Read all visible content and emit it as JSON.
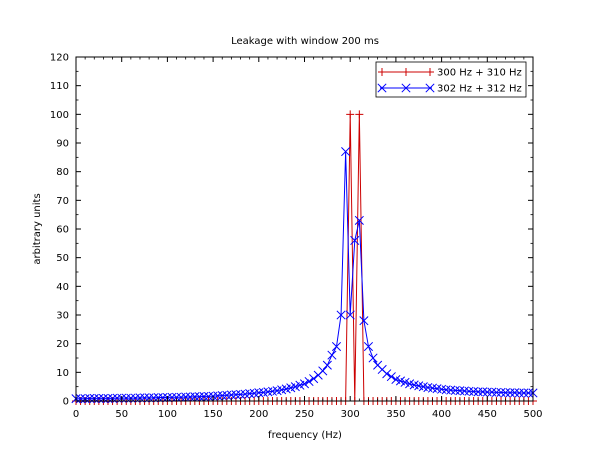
{
  "chart_data": {
    "type": "line",
    "title": "Leakage with window 200 ms",
    "xlabel": "frequency (Hz)",
    "ylabel": "arbitrary units",
    "xlim": [
      0,
      500
    ],
    "ylim": [
      0,
      120
    ],
    "xticks": [
      0,
      50,
      100,
      150,
      200,
      250,
      300,
      350,
      400,
      450,
      500
    ],
    "yticks": [
      0,
      10,
      20,
      30,
      40,
      50,
      60,
      70,
      80,
      90,
      100,
      110,
      120
    ],
    "grid": false,
    "legend_position": "top-right",
    "series": [
      {
        "name": "300 Hz + 310 Hz",
        "color": "#cc0000",
        "marker": "plus",
        "x": [
          0,
          5,
          10,
          15,
          20,
          25,
          30,
          35,
          40,
          45,
          50,
          55,
          60,
          65,
          70,
          75,
          80,
          85,
          90,
          95,
          100,
          105,
          110,
          115,
          120,
          125,
          130,
          135,
          140,
          145,
          150,
          155,
          160,
          165,
          170,
          175,
          180,
          185,
          190,
          195,
          200,
          205,
          210,
          215,
          220,
          225,
          230,
          235,
          240,
          245,
          250,
          255,
          260,
          265,
          270,
          275,
          280,
          285,
          290,
          295,
          300,
          305,
          310,
          315,
          320,
          325,
          330,
          335,
          340,
          345,
          350,
          355,
          360,
          365,
          370,
          375,
          380,
          385,
          390,
          395,
          400,
          405,
          410,
          415,
          420,
          425,
          430,
          435,
          440,
          445,
          450,
          455,
          460,
          465,
          470,
          475,
          480,
          485,
          490,
          495,
          500
        ],
        "y": [
          0,
          0,
          0,
          0,
          0,
          0,
          0,
          0,
          0,
          0,
          0,
          0,
          0,
          0,
          0,
          0,
          0,
          0,
          0,
          0,
          0,
          0,
          0,
          0,
          0,
          0,
          0,
          0,
          0,
          0,
          0,
          0,
          0,
          0,
          0,
          0,
          0,
          0,
          0,
          0,
          0,
          0,
          0,
          0,
          0,
          0,
          0,
          0,
          0,
          0,
          0,
          0,
          0,
          0,
          0,
          0,
          0,
          0,
          0,
          0,
          100,
          0,
          100,
          0,
          0,
          0,
          0,
          0,
          0,
          0,
          0,
          0,
          0,
          0,
          0,
          0,
          0,
          0,
          0,
          0,
          0,
          0,
          0,
          0,
          0,
          0,
          0,
          0,
          0,
          0,
          0,
          0,
          0,
          0,
          0,
          0,
          0,
          0,
          0,
          0,
          0
        ]
      },
      {
        "name": "302 Hz + 312 Hz",
        "color": "#0000ff",
        "marker": "x",
        "x": [
          0,
          5,
          10,
          15,
          20,
          25,
          30,
          35,
          40,
          45,
          50,
          55,
          60,
          65,
          70,
          75,
          80,
          85,
          90,
          95,
          100,
          105,
          110,
          115,
          120,
          125,
          130,
          135,
          140,
          145,
          150,
          155,
          160,
          165,
          170,
          175,
          180,
          185,
          190,
          195,
          200,
          205,
          210,
          215,
          220,
          225,
          230,
          235,
          240,
          245,
          250,
          255,
          260,
          265,
          270,
          275,
          280,
          285,
          290,
          295,
          300,
          305,
          310,
          315,
          320,
          325,
          330,
          335,
          340,
          345,
          350,
          355,
          360,
          365,
          370,
          375,
          380,
          385,
          390,
          395,
          400,
          405,
          410,
          415,
          420,
          425,
          430,
          435,
          440,
          445,
          450,
          455,
          460,
          465,
          470,
          475,
          480,
          485,
          490,
          495,
          500
        ],
        "y": [
          0.8,
          0.8,
          0.8,
          0.9,
          0.9,
          0.9,
          0.9,
          0.9,
          0.9,
          1.0,
          1.0,
          1.0,
          1.0,
          1.0,
          1.1,
          1.1,
          1.1,
          1.1,
          1.2,
          1.2,
          1.2,
          1.3,
          1.3,
          1.3,
          1.4,
          1.4,
          1.5,
          1.5,
          1.6,
          1.6,
          1.7,
          1.8,
          1.9,
          2.0,
          2.1,
          2.2,
          2.3,
          2.4,
          2.6,
          2.7,
          2.9,
          3.0,
          3.2,
          3.4,
          3.6,
          3.9,
          4.2,
          4.6,
          5.0,
          5.5,
          6.0,
          6.8,
          7.8,
          9.0,
          10.5,
          12.5,
          16.0,
          19.0,
          30.0,
          87.0,
          30.0,
          56.0,
          63.0,
          28.0,
          19.0,
          15.0,
          12.5,
          11.0,
          9.5,
          8.5,
          7.5,
          7.0,
          6.5,
          6.0,
          5.6,
          5.3,
          5.0,
          4.7,
          4.5,
          4.3,
          4.1,
          3.9,
          3.8,
          3.7,
          3.6,
          3.5,
          3.4,
          3.3,
          3.2,
          3.2,
          3.1,
          3.1,
          3.0,
          3.0,
          2.9,
          2.9,
          2.9,
          2.8,
          2.8,
          2.8,
          2.8
        ]
      }
    ]
  }
}
